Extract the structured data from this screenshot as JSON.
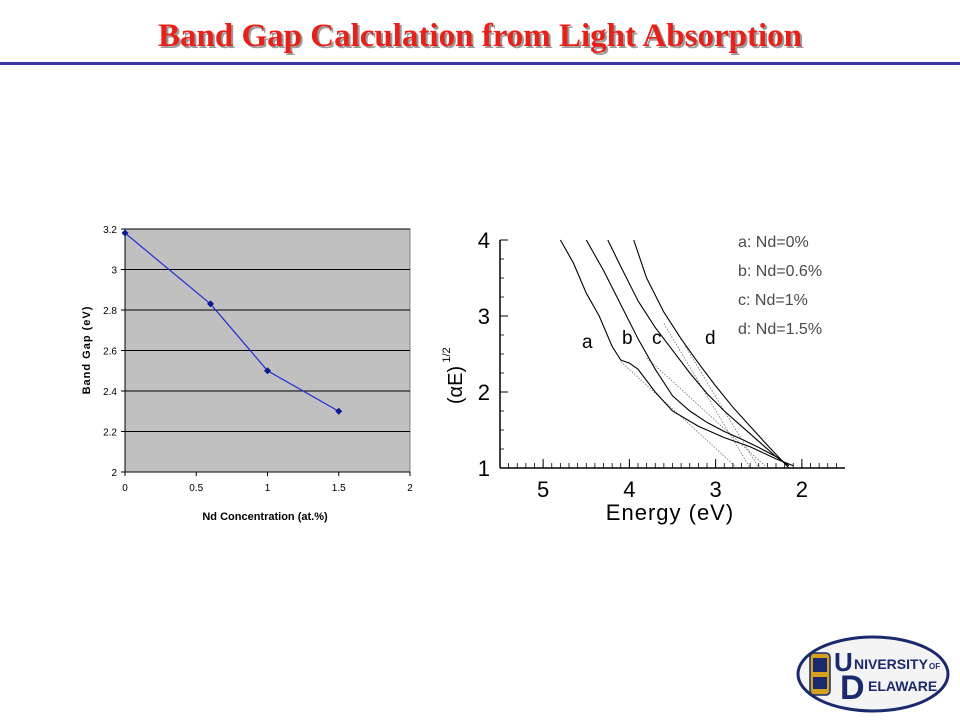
{
  "slide": {
    "title": "Band Gap Calculation from Light Absorption"
  },
  "colors": {
    "title": "#e8201a",
    "title_rule": "#3a3aa0",
    "left_plot_bg": "#c0c0c0",
    "left_series": "#1f2fd0",
    "right_curves": "#000000",
    "logo_navy": "#1a2a6c",
    "logo_gold": "#d4a020"
  },
  "logo": {
    "line1_big": "U",
    "line1_rest": "NIVERSITY",
    "line1_of": "OF",
    "line2_big": "D",
    "line2_rest": "ELAWARE"
  },
  "chart_data": [
    {
      "type": "line",
      "xlabel": "Nd Concentration (at.%)",
      "ylabel": "Band Gap (eV)",
      "xlim": [
        0,
        2
      ],
      "ylim": [
        2,
        3.2
      ],
      "xticks": [
        0,
        0.5,
        1,
        1.5,
        2
      ],
      "xtick_labels": [
        "0",
        "0.5",
        "1",
        "1.5",
        "2"
      ],
      "yticks": [
        2,
        2.2,
        2.4,
        2.6,
        2.8,
        3,
        3.2
      ],
      "ytick_labels": [
        "2",
        "2.2",
        "2.4",
        "2.6",
        "2.8",
        "3",
        "3.2"
      ],
      "grid": "horizontal",
      "series": [
        {
          "x": [
            0,
            0.6,
            1,
            1.5
          ],
          "y": [
            3.18,
            2.83,
            2.5,
            2.3
          ]
        }
      ]
    },
    {
      "type": "line",
      "xlabel": "Energy (eV)",
      "ylabel": "(αE)",
      "ylabel_superscript": "1/2",
      "xlim": [
        5.5,
        1.5
      ],
      "x_reversed": true,
      "ylim": [
        1,
        4
      ],
      "xticks": [
        5,
        4,
        3,
        2
      ],
      "xtick_labels": [
        "5",
        "4",
        "3",
        "2"
      ],
      "yticks": [
        1,
        2,
        3,
        4
      ],
      "ytick_labels": [
        "1",
        "2",
        "3",
        "4"
      ],
      "legend": [
        "a: Nd=0%",
        "b: Nd=0.6%",
        "c: Nd=1%",
        "d: Nd=1.5%"
      ],
      "legend_position": "top-right",
      "curve_letters": [
        "a",
        "b",
        "c",
        "d"
      ],
      "series": [
        {
          "x": [
            4.8,
            4.65,
            4.5,
            4.35,
            4.2,
            4.1,
            4.0,
            3.9,
            3.7,
            3.5,
            3.2,
            2.9,
            2.6,
            2.3,
            2.1
          ],
          "y": [
            4.0,
            3.7,
            3.3,
            3.0,
            2.6,
            2.42,
            2.38,
            2.3,
            2.0,
            1.75,
            1.55,
            1.4,
            1.28,
            1.12,
            1.03
          ]
        },
        {
          "x": [
            4.5,
            4.3,
            4.1,
            3.9,
            3.7,
            3.5,
            3.3,
            3.1,
            2.9,
            2.7,
            2.5,
            2.3,
            2.15
          ],
          "y": [
            4.0,
            3.6,
            3.15,
            2.7,
            2.3,
            1.95,
            1.75,
            1.6,
            1.48,
            1.38,
            1.27,
            1.15,
            1.03
          ]
        },
        {
          "x": [
            4.25,
            4.1,
            3.9,
            3.7,
            3.5,
            3.3,
            3.1,
            2.9,
            2.7,
            2.5,
            2.3,
            2.15
          ],
          "y": [
            4.0,
            3.65,
            3.2,
            2.85,
            2.55,
            2.25,
            1.98,
            1.75,
            1.55,
            1.35,
            1.15,
            1.03
          ]
        },
        {
          "x": [
            3.95,
            3.8,
            3.6,
            3.4,
            3.2,
            3.0,
            2.8,
            2.6,
            2.4,
            2.25,
            2.15
          ],
          "y": [
            4.0,
            3.5,
            3.05,
            2.7,
            2.38,
            2.08,
            1.8,
            1.55,
            1.3,
            1.12,
            1.0
          ]
        }
      ],
      "extrapolation_lines": [
        {
          "x": [
            4.1,
            2.75
          ],
          "y": [
            2.4,
            1.0
          ]
        },
        {
          "x": [
            3.8,
            2.4
          ],
          "y": [
            2.45,
            1.0
          ]
        },
        {
          "x": [
            3.6,
            2.6
          ],
          "y": [
            2.9,
            1.0
          ]
        },
        {
          "x": [
            3.35,
            2.5
          ],
          "y": [
            2.6,
            1.0
          ]
        }
      ]
    }
  ]
}
